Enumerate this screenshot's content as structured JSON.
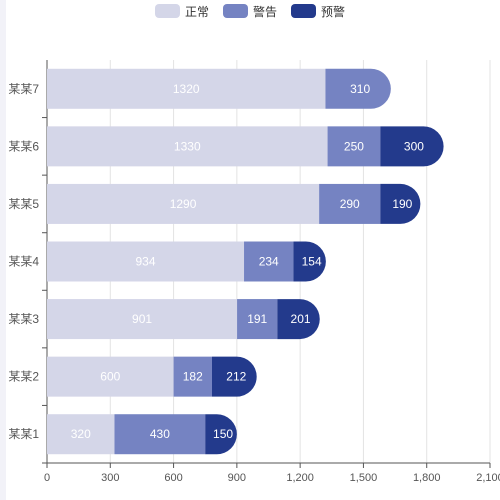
{
  "chart_data": {
    "type": "bar",
    "orientation": "horizontal",
    "stacked": true,
    "categories": [
      "某某1",
      "某某2",
      "某某3",
      "某某4",
      "某某5",
      "某某6",
      "某某7"
    ],
    "series": [
      {
        "name": "正常",
        "color": "#d4d6e8",
        "values": [
          320,
          600,
          901,
          934,
          1290,
          1330,
          1320
        ]
      },
      {
        "name": "警告",
        "color": "#7583c2",
        "values": [
          430,
          182,
          191,
          234,
          290,
          250,
          310
        ]
      },
      {
        "name": "预警",
        "color": "#233a8c",
        "values": [
          150,
          212,
          201,
          154,
          190,
          300,
          null
        ]
      }
    ],
    "xticks": [
      "0",
      "300",
      "600",
      "900",
      "1,200",
      "1,500",
      "1,800",
      "2,100"
    ],
    "xlim": [
      0,
      2100
    ],
    "grid": true,
    "legend_position": "top-center"
  }
}
